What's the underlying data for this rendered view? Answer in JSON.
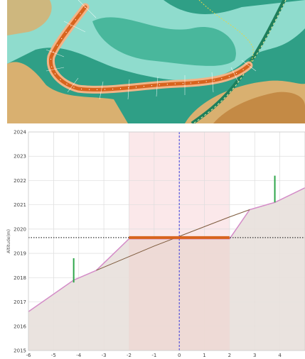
{
  "map_panel": {
    "colors": {
      "water_dark": "#2f9f86",
      "water_light": "#8fdccd",
      "water_mid": "#49b79c",
      "land": "#d9b070",
      "land_dark": "#c48a45",
      "route": "#d8641e",
      "stations": "#ffffff"
    }
  },
  "chart": {
    "y_axis_label": "Altitude(m)",
    "x_ticks": [
      "-6",
      "-5",
      "-4",
      "-3",
      "-2",
      "-1",
      "0",
      "1",
      "2",
      "3",
      "4"
    ],
    "y_ticks": [
      "2015",
      "2016",
      "2017",
      "2018",
      "2019",
      "2020",
      "2021",
      "2022",
      "2023",
      "2024"
    ],
    "colors": {
      "ground_line": "#d48cc8",
      "profile_line": "#7d5a3c",
      "ground_fill": "#e8e0dc",
      "corridor_band": "#fbe8ea",
      "platform": "#d8641e",
      "center_line": "#3a3adb",
      "dotted_ref": "#333333",
      "markers": "#2ea64a"
    },
    "chart_data": {
      "type": "line",
      "xlim": [
        -6,
        5
      ],
      "ylim": [
        2015,
        2024
      ],
      "series": [
        {
          "values": [
            [
              -6,
              2016.6
            ],
            [
              -4.2,
              2017.9
            ],
            [
              -3.3,
              2018.3
            ],
            [
              -2,
              2019.6
            ],
            [
              2,
              2019.6
            ],
            [
              2.8,
              2020.8
            ],
            [
              3.8,
              2021.1
            ],
            [
              5,
              2021.7
            ]
          ]
        },
        {
          "values": [
            [
              -3.3,
              2018.3
            ],
            [
              -1,
              2019.3
            ],
            [
              0,
              2019.7
            ],
            [
              2,
              2020.5
            ],
            [
              2.8,
              2020.8
            ]
          ]
        },
        {
          "values": [
            [
              -2,
              2019.65
            ],
            [
              2,
              2019.65
            ]
          ]
        }
      ],
      "reference_lines": {
        "vertical_x": 0,
        "horizontal_y": 2019.65,
        "band_x": [
          -2,
          2
        ]
      },
      "markers": [
        {
          "x": -4.2,
          "y0": 2017.8,
          "y1": 2018.8
        },
        {
          "x": 3.8,
          "y0": 2021.1,
          "y1": 2022.2
        }
      ]
    }
  }
}
